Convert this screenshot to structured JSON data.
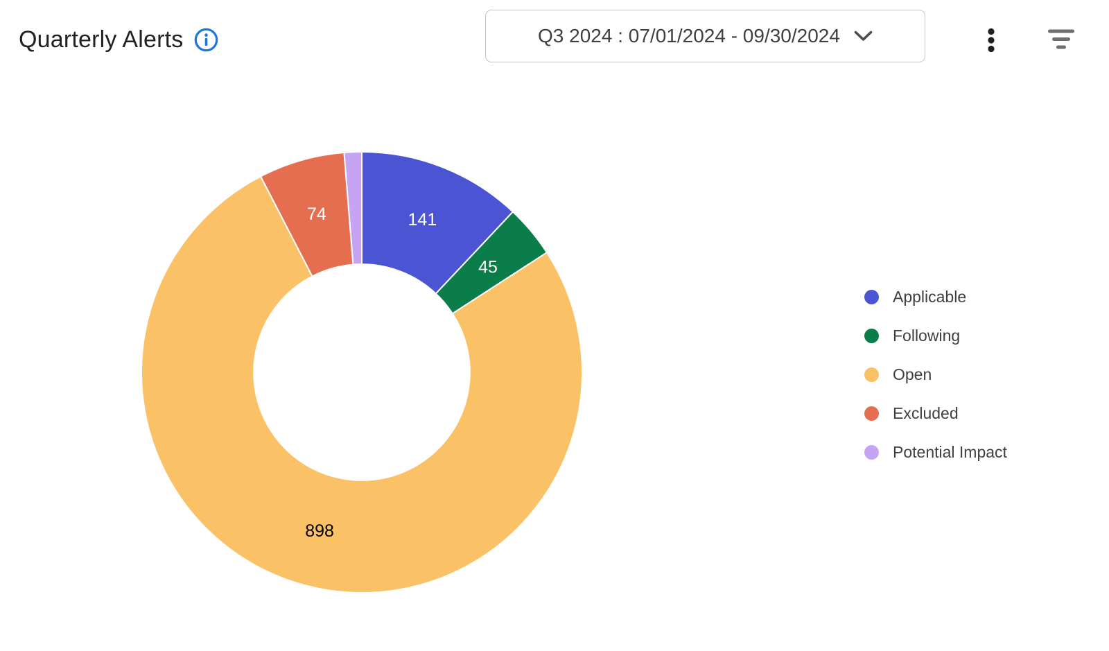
{
  "header": {
    "title": "Quarterly Alerts",
    "period_selector": {
      "value": "Q3 2024 : 07/01/2024 - 09/30/2024"
    },
    "icons": {
      "info": "info-icon",
      "dropdown_chevron": "chevron-down-icon",
      "more_options": "kebab-menu-icon",
      "filter": "filter-list-icon"
    }
  },
  "colors": {
    "info_accent": "#1a73e8",
    "title_text": "#202124",
    "selector_text": "#3c4043",
    "selector_border": "#c7c7c7",
    "icon_black": "#1f1f1f",
    "icon_gray": "#6e6e6e",
    "legend_text": "#3c4043",
    "background": "#ffffff"
  },
  "chart_data": {
    "type": "pie",
    "subtype": "donut",
    "title": "Quarterly Alerts",
    "period": "Q3 2024 : 07/01/2024 - 09/30/2024",
    "start_angle": "top",
    "direction": "clockwise",
    "inner_radius_ratio": 0.49,
    "legend_position": "right",
    "segments": [
      {
        "label": "Applicable",
        "value": 141,
        "color": "#4b55d4",
        "value_label_color": "#ffffff",
        "value_shown": true
      },
      {
        "label": "Following",
        "value": 45,
        "color": "#0a7d4b",
        "value_label_color": "#ffffff",
        "value_shown": true
      },
      {
        "label": "Open",
        "value": 898,
        "color": "#fbc167",
        "value_label_color": "#000000",
        "value_shown": true
      },
      {
        "label": "Excluded",
        "value": 74,
        "color": "#e56e50",
        "value_label_color": "#ffffff",
        "value_shown": true
      },
      {
        "label": "Potential Impact",
        "value": 15,
        "color": "#c7a4f3",
        "value_label_color": "#ffffff",
        "value_shown": false,
        "note": "value label not displayed on slice; value estimated from arc angle"
      }
    ]
  }
}
